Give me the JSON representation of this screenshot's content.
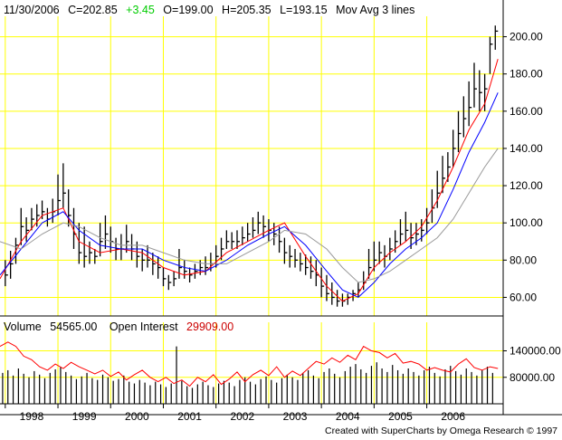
{
  "header": {
    "date": "11/30/2006",
    "close": "C=202.85",
    "change": "+3.45",
    "open": "O=199.00",
    "high": "H=205.35",
    "low": "L=193.15",
    "indicator": "Mov Avg 3 lines"
  },
  "volume_header": {
    "volume_label": "Volume",
    "volume_value": "54565.00",
    "oi_label": "Open Interest",
    "oi_value": "29909.00"
  },
  "footer": "Created with SuperCharts by Omega Research © 1997",
  "colors": {
    "grid": "#ffff00",
    "bars": "#000000",
    "ma_short": "#ff0000",
    "ma_mid": "#0000ff",
    "ma_long": "#999999",
    "open_interest": "#ff0000",
    "change_up": "#00cc00",
    "oi_value": "#cc0000"
  },
  "chart_data": [
    {
      "type": "line",
      "subtype": "ohlc-bars-with-moving-averages",
      "x_labels": [
        "1998",
        "1999",
        "2000",
        "2001",
        "2002",
        "2003",
        "2004",
        "2005",
        "2006"
      ],
      "y_ticks": [
        "60.00",
        "80.00",
        "100.00",
        "120.00",
        "140.00",
        "160.00",
        "180.00",
        "200.00"
      ],
      "ylim": [
        50,
        210
      ],
      "xlim": [
        1997.4,
        2006.95
      ],
      "grid": true,
      "series": [
        {
          "name": "",
          "x": [
            1997.5,
            1997.6,
            1997.7,
            1997.8,
            1997.9,
            1998.0,
            1998.1,
            1998.2,
            1998.3,
            1998.4,
            1998.5,
            1998.6,
            1998.7,
            1998.8,
            1998.9,
            1999.0,
            1999.1,
            1999.2,
            1999.3,
            1999.4,
            1999.5,
            1999.6,
            1999.7,
            1999.8,
            1999.9,
            2000.0,
            2000.1,
            2000.2,
            2000.3,
            2000.4,
            2000.5,
            2000.6,
            2000.7,
            2000.8,
            2000.9,
            2001.0,
            2001.1,
            2001.2,
            2001.3,
            2001.4,
            2001.5,
            2001.6,
            2001.7,
            2001.8,
            2001.9,
            2002.0,
            2002.1,
            2002.2,
            2002.3,
            2002.4,
            2002.5,
            2002.6,
            2002.7,
            2002.8,
            2002.9,
            2003.0,
            2003.1,
            2003.2,
            2003.3,
            2003.4,
            2003.5,
            2003.6,
            2003.7,
            2003.8,
            2003.9,
            2004.0,
            2004.1,
            2004.2,
            2004.3,
            2004.4,
            2004.5,
            2004.6,
            2004.7,
            2004.8,
            2004.9,
            2005.0,
            2005.1,
            2005.2,
            2005.3,
            2005.4,
            2005.5,
            2005.6,
            2005.7,
            2005.8,
            2005.9,
            2006.0,
            2006.1,
            2006.2,
            2006.3,
            2006.4,
            2006.5,
            2006.6,
            2006.7,
            2006.8
          ],
          "high": [
            80,
            85,
            92,
            108,
            103,
            108,
            110,
            112,
            108,
            113,
            126,
            132,
            118,
            108,
            100,
            98,
            90,
            86,
            100,
            104,
            98,
            92,
            94,
            99,
            94,
            90,
            86,
            88,
            84,
            82,
            76,
            72,
            74,
            86,
            80,
            76,
            78,
            80,
            82,
            84,
            88,
            92,
            96,
            95,
            96,
            98,
            100,
            103,
            106,
            104,
            102,
            100,
            98,
            92,
            88,
            86,
            84,
            83,
            82,
            80,
            76,
            72,
            68,
            64,
            62,
            62,
            64,
            68,
            74,
            86,
            90,
            90,
            88,
            92,
            96,
            102,
            106,
            100,
            100,
            102,
            108,
            118,
            128,
            136,
            138,
            150,
            160,
            168,
            176,
            186,
            182,
            180,
            200,
            206
          ],
          "low": [
            66,
            70,
            78,
            88,
            90,
            96,
            98,
            102,
            98,
            100,
            104,
            108,
            98,
            86,
            78,
            76,
            78,
            78,
            82,
            86,
            84,
            80,
            80,
            84,
            80,
            76,
            74,
            76,
            72,
            70,
            66,
            64,
            66,
            70,
            70,
            68,
            70,
            72,
            72,
            74,
            76,
            80,
            86,
            86,
            86,
            88,
            90,
            92,
            94,
            92,
            90,
            88,
            84,
            78,
            76,
            76,
            74,
            72,
            70,
            66,
            60,
            58,
            56,
            55,
            55,
            56,
            58,
            60,
            64,
            70,
            74,
            78,
            76,
            80,
            84,
            88,
            90,
            86,
            88,
            90,
            94,
            100,
            108,
            116,
            122,
            130,
            138,
            146,
            152,
            162,
            160,
            160,
            180,
            193
          ],
          "close": [
            72,
            78,
            88,
            98,
            96,
            102,
            104,
            106,
            102,
            106,
            112,
            116,
            104,
            94,
            84,
            82,
            84,
            82,
            90,
            94,
            90,
            86,
            86,
            90,
            86,
            82,
            80,
            80,
            78,
            76,
            70,
            68,
            70,
            76,
            74,
            72,
            74,
            76,
            76,
            78,
            82,
            86,
            90,
            90,
            90,
            92,
            94,
            96,
            100,
            98,
            96,
            94,
            90,
            84,
            82,
            80,
            78,
            76,
            74,
            72,
            66,
            62,
            60,
            58,
            58,
            60,
            62,
            64,
            68,
            76,
            80,
            84,
            82,
            86,
            90,
            94,
            96,
            92,
            94,
            96,
            100,
            108,
            116,
            124,
            130,
            140,
            148,
            156,
            162,
            172,
            170,
            172,
            196,
            203
          ]
        },
        {
          "name": "",
          "x": [
            1997.4,
            1997.8,
            1998.2,
            1998.6,
            1998.9,
            1999.3,
            1999.7,
            2000.1,
            2000.5,
            2000.9,
            2001.3,
            2001.7,
            2002.1,
            2002.5,
            2002.8,
            2003.2,
            2003.6,
            2003.9,
            2004.2,
            2004.5,
            2004.8,
            2005.1,
            2005.4,
            2005.7,
            2006.0,
            2006.3,
            2006.6,
            2006.85
          ],
          "values": [
            70,
            90,
            104,
            108,
            90,
            84,
            86,
            84,
            76,
            72,
            74,
            84,
            90,
            96,
            100,
            82,
            66,
            58,
            62,
            76,
            84,
            90,
            98,
            112,
            130,
            150,
            164,
            188
          ]
        },
        {
          "name": "",
          "x": [
            1997.4,
            1997.8,
            1998.2,
            1998.6,
            1998.9,
            1999.3,
            1999.7,
            2000.1,
            2000.5,
            2000.9,
            2001.3,
            2001.7,
            2002.1,
            2002.5,
            2002.8,
            2003.2,
            2003.6,
            2003.9,
            2004.2,
            2004.5,
            2004.8,
            2005.1,
            2005.4,
            2005.7,
            2006.0,
            2006.3,
            2006.6,
            2006.85
          ],
          "values": [
            72,
            86,
            100,
            106,
            96,
            88,
            86,
            86,
            80,
            76,
            74,
            80,
            88,
            94,
            98,
            88,
            74,
            64,
            60,
            68,
            78,
            86,
            92,
            100,
            118,
            138,
            154,
            170
          ]
        },
        {
          "name": "",
          "x": [
            1997.4,
            1997.8,
            1998.2,
            1998.6,
            1998.9,
            1999.3,
            1999.7,
            2000.1,
            2000.5,
            2000.9,
            2001.3,
            2001.7,
            2002.1,
            2002.5,
            2002.8,
            2003.2,
            2003.6,
            2003.9,
            2004.2,
            2004.5,
            2004.8,
            2005.1,
            2005.4,
            2005.7,
            2006.0,
            2006.3,
            2006.6,
            2006.85
          ],
          "values": [
            90,
            86,
            94,
            100,
            98,
            92,
            88,
            88,
            84,
            80,
            78,
            78,
            84,
            90,
            96,
            94,
            86,
            76,
            68,
            70,
            74,
            80,
            86,
            92,
            102,
            116,
            130,
            140
          ]
        }
      ]
    },
    {
      "type": "bar",
      "subtype": "volume-with-open-interest",
      "y_ticks": [
        "80000.00",
        "140000.00"
      ],
      "ylim": [
        20000,
        180000
      ],
      "xlim": [
        1997.4,
        2006.95
      ],
      "grid": true,
      "series": [
        {
          "name": "Volume",
          "x": [
            1997.45,
            1997.55,
            1997.65,
            1997.75,
            1997.85,
            1997.95,
            1998.05,
            1998.15,
            1998.25,
            1998.35,
            1998.45,
            1998.55,
            1998.65,
            1998.75,
            1998.85,
            1998.95,
            1999.05,
            1999.15,
            1999.25,
            1999.35,
            1999.45,
            1999.55,
            1999.65,
            1999.75,
            1999.85,
            1999.95,
            2000.05,
            2000.15,
            2000.25,
            2000.35,
            2000.45,
            2000.55,
            2000.65,
            2000.75,
            2000.85,
            2000.95,
            2001.05,
            2001.15,
            2001.25,
            2001.35,
            2001.45,
            2001.55,
            2001.65,
            2001.75,
            2001.85,
            2001.95,
            2002.05,
            2002.15,
            2002.25,
            2002.35,
            2002.45,
            2002.55,
            2002.65,
            2002.75,
            2002.85,
            2002.95,
            2003.05,
            2003.15,
            2003.25,
            2003.35,
            2003.45,
            2003.55,
            2003.65,
            2003.75,
            2003.85,
            2003.95,
            2004.05,
            2004.15,
            2004.25,
            2004.35,
            2004.45,
            2004.55,
            2004.65,
            2004.75,
            2004.85,
            2004.95,
            2005.05,
            2005.15,
            2005.25,
            2005.35,
            2005.45,
            2005.55,
            2005.65,
            2005.75,
            2005.85,
            2005.95,
            2006.05,
            2006.15,
            2006.25,
            2006.35,
            2006.45,
            2006.55,
            2006.65,
            2006.75
          ],
          "values": [
            90000,
            96000,
            84000,
            100000,
            88000,
            80000,
            94000,
            86000,
            78000,
            90000,
            98000,
            104000,
            92000,
            84000,
            76000,
            82000,
            90000,
            78000,
            74000,
            86000,
            80000,
            72000,
            76000,
            84000,
            70000,
            66000,
            74000,
            68000,
            62000,
            70000,
            64000,
            58000,
            66000,
            150000,
            72000,
            60000,
            56000,
            64000,
            70000,
            62000,
            58000,
            66000,
            72000,
            68000,
            60000,
            74000,
            80000,
            70000,
            64000,
            76000,
            82000,
            74000,
            68000,
            78000,
            86000,
            80000,
            74000,
            90000,
            96000,
            84000,
            78000,
            92000,
            100000,
            88000,
            80000,
            94000,
            104000,
            110000,
            98000,
            90000,
            106000,
            114000,
            100000,
            92000,
            108000,
            96000,
            88000,
            100000,
            92000,
            84000,
            96000,
            104000,
            90000,
            82000,
            98000,
            106000,
            94000,
            86000,
            100000,
            92000,
            84000,
            96000,
            104000,
            90000
          ]
        },
        {
          "name": "Open Interest",
          "x": [
            1997.4,
            1997.55,
            1997.7,
            1997.85,
            1998.0,
            1998.15,
            1998.3,
            1998.45,
            1998.6,
            1998.75,
            1998.9,
            1999.05,
            1999.2,
            1999.35,
            1999.5,
            1999.65,
            1999.8,
            1999.95,
            2000.1,
            2000.25,
            2000.4,
            2000.55,
            2000.7,
            2000.85,
            2001.0,
            2001.15,
            2001.3,
            2001.45,
            2001.6,
            2001.75,
            2001.9,
            2002.05,
            2002.2,
            2002.35,
            2002.5,
            2002.65,
            2002.8,
            2002.95,
            2003.1,
            2003.25,
            2003.4,
            2003.55,
            2003.7,
            2003.85,
            2004.0,
            2004.15,
            2004.3,
            2004.45,
            2004.6,
            2004.75,
            2004.9,
            2005.05,
            2005.2,
            2005.35,
            2005.5,
            2005.65,
            2005.8,
            2005.95,
            2006.1,
            2006.25,
            2006.4,
            2006.55,
            2006.7,
            2006.85
          ],
          "values": [
            150000,
            160000,
            150000,
            128000,
            120000,
            104000,
            96000,
            110000,
            100000,
            114000,
            104000,
            96000,
            88000,
            96000,
            82000,
            92000,
            74000,
            86000,
            96000,
            80000,
            70000,
            80000,
            66000,
            74000,
            60000,
            80000,
            70000,
            86000,
            64000,
            76000,
            92000,
            70000,
            86000,
            96000,
            84000,
            104000,
            80000,
            94000,
            84000,
            100000,
            116000,
            110000,
            124000,
            114000,
            130000,
            120000,
            150000,
            140000,
            136000,
            124000,
            134000,
            112000,
            116000,
            110000,
            96000,
            102000,
            96000,
            92000,
            110000,
            122000,
            102000,
            96000,
            104000,
            100000
          ]
        }
      ]
    }
  ]
}
